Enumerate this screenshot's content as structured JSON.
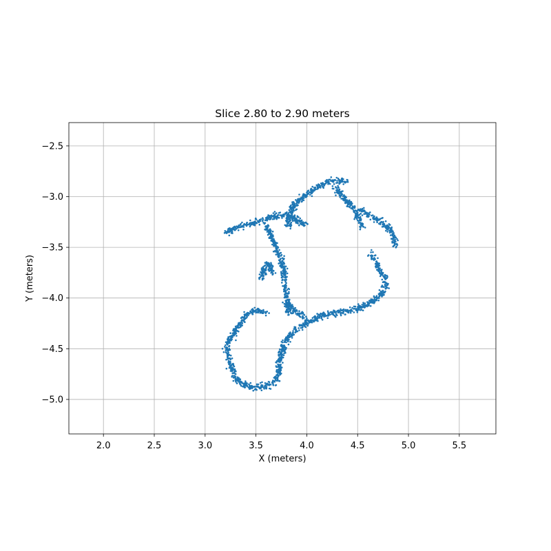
{
  "chart_data": {
    "type": "scatter",
    "title": "Slice 2.80 to 2.90 meters",
    "xlabel": "X (meters)",
    "ylabel": "Y (meters)",
    "xlim": [
      1.66,
      5.86
    ],
    "ylim": [
      -5.34,
      -2.27
    ],
    "xticks": [
      "2.0",
      "2.5",
      "3.0",
      "3.5",
      "4.0",
      "4.5",
      "5.0",
      "5.5"
    ],
    "yticks": [
      "−2.5",
      "−3.0",
      "−3.5",
      "−4.0",
      "−4.5",
      "−5.0"
    ],
    "grid": true,
    "marker_color": "#1f77b4",
    "series": [
      {
        "shape": "point cloud of thin wall segments",
        "paths": [
          [
            [
              3.82,
              -3.3
            ],
            [
              3.85,
              -3.12
            ],
            [
              3.92,
              -3.03
            ],
            [
              4.0,
              -2.98
            ],
            [
              4.1,
              -2.9
            ],
            [
              4.2,
              -2.86
            ],
            [
              4.28,
              -2.83
            ],
            [
              4.4,
              -2.86
            ]
          ],
          [
            [
              4.27,
              -2.9
            ],
            [
              4.35,
              -3.0
            ],
            [
              4.45,
              -3.1
            ],
            [
              4.5,
              -3.2
            ],
            [
              4.55,
              -3.3
            ]
          ],
          [
            [
              4.52,
              -3.12
            ],
            [
              4.62,
              -3.18
            ],
            [
              4.72,
              -3.24
            ],
            [
              4.8,
              -3.3
            ],
            [
              4.86,
              -3.4
            ],
            [
              4.87,
              -3.5
            ]
          ],
          [
            [
              4.62,
              -3.55
            ],
            [
              4.68,
              -3.65
            ],
            [
              4.75,
              -3.78
            ],
            [
              4.78,
              -3.88
            ],
            [
              4.72,
              -3.98
            ],
            [
              4.65,
              -4.03
            ],
            [
              4.56,
              -4.08
            ],
            [
              4.45,
              -4.12
            ],
            [
              4.35,
              -4.14
            ],
            [
              4.25,
              -4.15
            ],
            [
              4.15,
              -4.17
            ],
            [
              4.05,
              -4.22
            ],
            [
              3.95,
              -4.28
            ],
            [
              3.85,
              -4.35
            ],
            [
              3.78,
              -4.45
            ],
            [
              3.75,
              -4.55
            ],
            [
              3.73,
              -4.65
            ],
            [
              3.72,
              -4.75
            ],
            [
              3.68,
              -4.83
            ],
            [
              3.6,
              -4.87
            ],
            [
              3.5,
              -4.88
            ],
            [
              3.4,
              -4.86
            ],
            [
              3.32,
              -4.82
            ],
            [
              3.28,
              -4.75
            ],
            [
              3.25,
              -4.65
            ],
            [
              3.22,
              -4.55
            ],
            [
              3.22,
              -4.45
            ],
            [
              3.28,
              -4.35
            ],
            [
              3.35,
              -4.25
            ],
            [
              3.42,
              -4.15
            ],
            [
              3.52,
              -4.12
            ],
            [
              3.6,
              -4.15
            ]
          ],
          [
            [
              3.2,
              -3.35
            ],
            [
              3.3,
              -3.3
            ],
            [
              3.45,
              -3.27
            ],
            [
              3.55,
              -3.24
            ],
            [
              3.65,
              -3.2
            ],
            [
              3.78,
              -3.18
            ],
            [
              3.9,
              -3.22
            ],
            [
              3.98,
              -3.28
            ]
          ],
          [
            [
              3.6,
              -3.28
            ],
            [
              3.65,
              -3.4
            ],
            [
              3.72,
              -3.55
            ],
            [
              3.77,
              -3.7
            ],
            [
              3.79,
              -3.85
            ],
            [
              3.8,
              -3.95
            ],
            [
              3.82,
              -4.05
            ],
            [
              3.82,
              -4.15
            ]
          ],
          [
            [
              3.55,
              -3.82
            ],
            [
              3.58,
              -3.72
            ],
            [
              3.62,
              -3.65
            ],
            [
              3.66,
              -3.75
            ]
          ],
          [
            [
              3.78,
              -4.05
            ],
            [
              3.85,
              -4.1
            ],
            [
              3.92,
              -4.15
            ],
            [
              4.0,
              -4.2
            ]
          ]
        ],
        "spread": 0.028,
        "point_count": 2600
      }
    ]
  }
}
